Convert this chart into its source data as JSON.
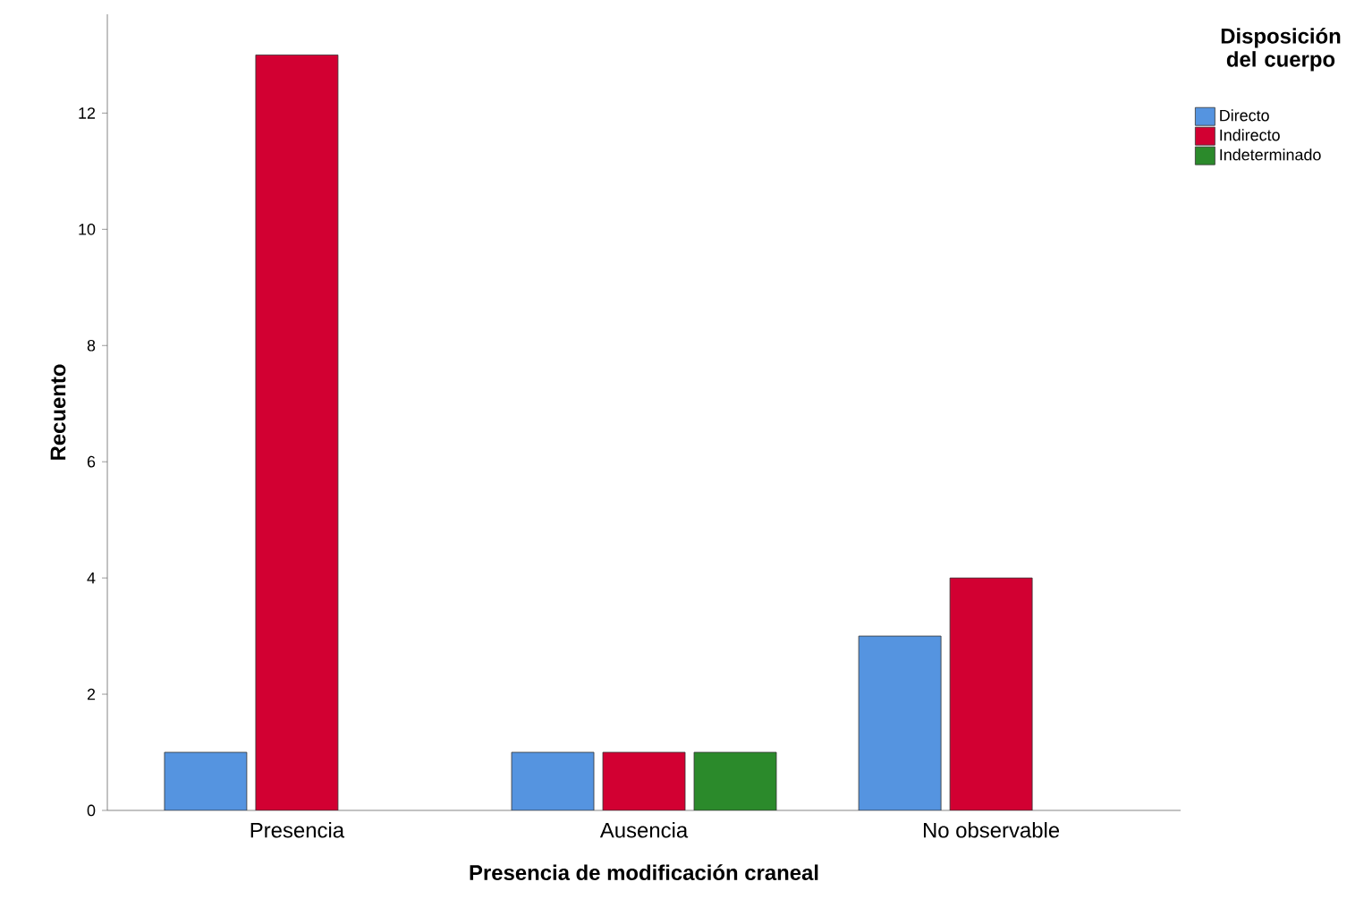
{
  "chart_data": {
    "type": "bar",
    "xlabel": "Presencia de modificación craneal",
    "ylabel": "Recuento",
    "legend_title": "Disposición del cuerpo",
    "legend": "top right",
    "categories": [
      "Presencia",
      "Ausencia",
      "No observable"
    ],
    "series": [
      {
        "name": "Directo",
        "color": "#5594e0",
        "values": [
          1,
          1,
          3
        ]
      },
      {
        "name": "Indirecto",
        "color": "#d20032",
        "values": [
          13,
          1,
          4
        ]
      },
      {
        "name": "Indeterminado",
        "color": "#2b8a2b",
        "values": [
          null,
          1,
          null
        ]
      }
    ],
    "ylim": [
      0,
      13.7
    ],
    "yticks": [
      0,
      2,
      4,
      6,
      8,
      10,
      12
    ],
    "grid": false
  }
}
